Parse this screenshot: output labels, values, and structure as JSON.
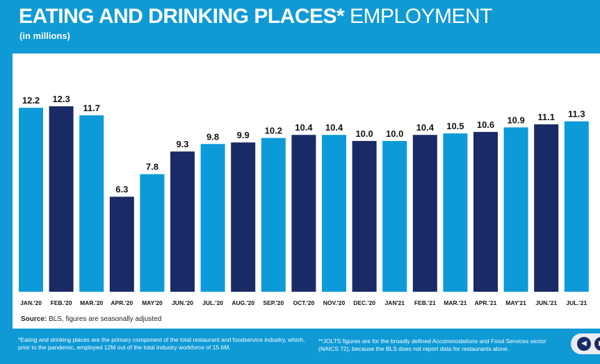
{
  "header": {
    "title_bold": "EATING AND DRINKING PLACES*",
    "title_light": " EMPLOYMENT",
    "subtitle": "(in millions)"
  },
  "source": {
    "label": "Source:",
    "text": " BLS, figures are seasonally adjusted"
  },
  "footnotes": {
    "left": "*Eating and drinking places are the primary component of the total restaurant and foodservice industry, which, prior to the pandemic, employed 12M out of the total industry workforce of 15.6M.",
    "right": "**JOLTS figures are for the broadly defined Accommodations and Food Services sector (NAICS 72), because the BLS does not report data for restaurants alone."
  },
  "nav": {
    "prev_icon": "arrow-left-icon",
    "next_icon": "arrow-right-icon"
  },
  "colors": {
    "background": "#0f9ad6",
    "bar_light": "#0c9ad9",
    "bar_dark": "#1a2a66",
    "text_dark": "#111111"
  },
  "chart_data": {
    "type": "bar",
    "categories": [
      "JAN.'20",
      "FEB.'20",
      "MAR.'20",
      "APR.'20",
      "MAY'20",
      "JUN.'20",
      "JUL.'20",
      "AUG.'20",
      "SEP.'20",
      "OCT.'20",
      "NOV.'20",
      "DEC.'20",
      "JAN'21",
      "FEB.'21",
      "MAR.'21",
      "APR.'21",
      "MAY'21",
      "JUN.'21",
      "JUL.'21"
    ],
    "values": [
      12.2,
      12.3,
      11.7,
      6.3,
      7.8,
      9.3,
      9.8,
      9.9,
      10.2,
      10.4,
      10.4,
      10.0,
      10.0,
      10.4,
      10.5,
      10.6,
      10.9,
      11.1,
      11.3
    ],
    "labels": [
      "12.2",
      "12.3",
      "11.7",
      "6.3",
      "7.8",
      "9.3",
      "9.8",
      "9.9",
      "10.2",
      "10.4",
      "10.4",
      "10.0",
      "10.0",
      "10.4",
      "10.5",
      "10.6",
      "10.9",
      "11.1",
      "11.3"
    ],
    "bar_colors": [
      "light",
      "dark",
      "light",
      "dark",
      "light",
      "dark",
      "light",
      "dark",
      "light",
      "dark",
      "light",
      "dark",
      "light",
      "dark",
      "light",
      "dark",
      "light",
      "dark",
      "light"
    ],
    "title": "EATING AND DRINKING PLACES* EMPLOYMENT",
    "xlabel": "",
    "ylabel": "",
    "ylim": [
      0,
      12.3
    ],
    "grid": false,
    "legend": "none"
  }
}
